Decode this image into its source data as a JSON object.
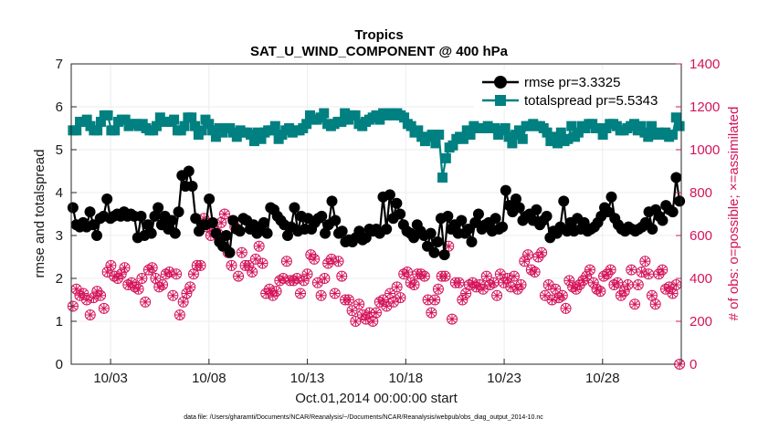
{
  "chart_data": {
    "type": "line",
    "title": "Tropics",
    "subtitle": "SAT_U_WIND_COMPONENT @ 400 hPa",
    "xlabel": "Oct.01,2014 00:00:00 start",
    "ylabel_left": "rmse and totalspread",
    "ylabel_right": "# of obs: o=possible; ×=assimilated",
    "footnote": "data file: /Users/gharamti/Documents/NCAR/Reanalysis/~/Documents/NCAR/Reanalysis/webpub/obs_diag_output_2014-10.nc",
    "x_unit": "days since Oct.01,2014 00:00:00",
    "xlim": [
      0.5,
      31.5
    ],
    "ylim_left": [
      0,
      7
    ],
    "ylim_right": [
      0,
      1400
    ],
    "x_ticks": [
      2.5,
      7.5,
      12.5,
      17.5,
      22.5,
      27.5
    ],
    "x_tick_labels": [
      "10/03",
      "10/08",
      "10/13",
      "10/18",
      "10/23",
      "10/28"
    ],
    "y_ticks_left": [
      0,
      1,
      2,
      3,
      4,
      5,
      6,
      7
    ],
    "y_ticks_right": [
      0,
      200,
      400,
      600,
      800,
      1000,
      1200,
      1400
    ],
    "grid": true,
    "legend_position": "top-right",
    "series": [
      {
        "name": "rmse pr=3.3325",
        "axis": "left",
        "color": "#000000",
        "marker": "circle",
        "values": [
          3.65,
          3.25,
          3.2,
          3.3,
          3.2,
          3.55,
          3.25,
          3.0,
          3.4,
          3.45,
          3.85,
          3.4,
          3.45,
          3.5,
          3.45,
          3.55,
          3.45,
          3.5,
          3.45,
          2.95,
          3.45,
          3.0,
          3.25,
          3.05,
          3.45,
          3.65,
          3.25,
          3.45,
          3.15,
          3.35,
          3.05,
          3.55,
          4.4,
          4.15,
          4.5,
          4.15,
          3.4,
          3.1,
          3.25,
          3.25,
          3.85,
          3.3,
          3.05,
          2.85,
          2.75,
          3.0,
          2.6,
          3.35,
          3.15,
          3.1,
          3.4,
          3.35,
          3.15,
          3.25,
          3.05,
          3.2,
          3.3,
          3.05,
          3.65,
          3.6,
          3.45,
          3.35,
          3.25,
          3.0,
          3.2,
          3.65,
          3.1,
          3.45,
          3.15,
          3.4,
          3.15,
          3.3,
          3.4,
          3.45,
          3.05,
          3.25,
          3.8,
          3.35,
          3.05,
          3.1,
          2.85,
          2.9,
          2.85,
          2.95,
          3.1,
          2.9,
          2.95,
          3.15,
          3.1,
          3.15,
          3.05,
          3.9,
          3.15,
          3.95,
          3.4,
          3.75,
          3.5,
          3.25,
          3.1,
          3.05,
          2.95,
          3.25,
          3.1,
          3.0,
          2.75,
          3.05,
          2.6,
          2.85,
          3.4,
          2.55,
          3.45,
          3.15,
          3.25,
          3.05,
          3.35,
          3.05,
          3.15,
          2.85,
          3.3,
          3.5,
          3.15,
          3.25,
          3.3,
          3.1,
          3.4,
          3.15,
          3.2,
          4.05,
          3.7,
          3.55,
          3.85,
          3.65,
          3.35,
          3.45,
          3.5,
          3.35,
          3.6,
          3.25,
          3.35,
          3.45,
          2.95,
          3.1,
          3.05,
          3.2,
          3.8,
          3.1,
          3.3,
          3.1,
          3.4,
          3.15,
          3.3,
          3.1,
          3.15,
          3.2,
          3.3,
          3.45,
          3.65,
          3.55,
          3.9,
          3.4,
          3.25,
          3.15,
          3.1,
          3.2,
          3.15,
          3.1,
          3.15,
          3.2,
          3.3,
          3.55,
          3.15,
          3.6,
          3.45,
          3.35,
          3.7,
          3.6,
          3.55,
          4.35,
          3.8
        ]
      },
      {
        "name": "totalspread pr=5.5343",
        "axis": "left",
        "color": "#008080",
        "marker": "square",
        "values": [
          5.45,
          5.45,
          5.65,
          5.65,
          5.7,
          5.55,
          5.45,
          5.45,
          5.65,
          5.8,
          5.8,
          5.45,
          5.45,
          5.65,
          5.7,
          5.7,
          5.55,
          5.6,
          5.6,
          5.55,
          5.6,
          5.5,
          5.45,
          5.45,
          5.55,
          5.75,
          5.65,
          5.65,
          5.65,
          5.7,
          5.45,
          5.45,
          5.55,
          5.75,
          5.75,
          5.55,
          5.35,
          5.45,
          5.7,
          5.6,
          5.45,
          5.3,
          5.5,
          5.4,
          5.5,
          5.5,
          5.4,
          5.3,
          5.45,
          5.4,
          5.4,
          5.35,
          5.2,
          5.4,
          5.25,
          5.4,
          5.45,
          5.45,
          5.55,
          5.25,
          5.35,
          5.45,
          5.5,
          5.4,
          5.45,
          5.45,
          5.5,
          5.6,
          5.8,
          5.7,
          5.7,
          5.75,
          5.85,
          5.6,
          5.55,
          5.6,
          5.65,
          5.65,
          5.85,
          5.7,
          5.8,
          5.8,
          5.6,
          5.55,
          5.65,
          5.7,
          5.75,
          5.8,
          5.7,
          5.85,
          5.8,
          5.85,
          5.8,
          5.85,
          5.8,
          5.75,
          5.6,
          5.55,
          5.4,
          5.45,
          5.3,
          5.2,
          5.3,
          5.35,
          5.15,
          5.35,
          4.35,
          4.8,
          5.05,
          5.1,
          5.25,
          5.3,
          5.25,
          5.45,
          5.35,
          5.55,
          5.5,
          5.5,
          5.5,
          5.55,
          5.5,
          5.5,
          5.35,
          5.45,
          5.5,
          5.3,
          5.15,
          5.35,
          5.45,
          5.25,
          5.55,
          5.55,
          5.6,
          5.55,
          5.55,
          5.5,
          5.4,
          5.2,
          5.3,
          5.15,
          5.4,
          5.2,
          5.25,
          5.55,
          5.3,
          5.4,
          5.55,
          5.5,
          5.6,
          5.6,
          5.5,
          5.5,
          5.35,
          5.5,
          5.6,
          5.6,
          5.55,
          5.45,
          5.45,
          5.5,
          5.55,
          5.6,
          5.45,
          5.55,
          5.4,
          5.3,
          5.55,
          5.35,
          5.4,
          5.35,
          5.4,
          5.3,
          5.35,
          5.75,
          5.55
        ]
      },
      {
        "name": "possible",
        "axis": "right",
        "color": "#d4145a",
        "marker": "open-circle",
        "values": [
          270,
          350,
          320,
          330,
          300,
          230,
          310,
          340,
          320,
          260,
          430,
          460,
          410,
          400,
          420,
          450,
          370,
          380,
          360,
          350,
          400,
          290,
          440,
          450,
          400,
          360,
          370,
          420,
          430,
          320,
          420,
          230,
          290,
          330,
          360,
          420,
          460,
          460,
          680,
          640,
          600,
          620,
          610,
          660,
          700,
          520,
          460,
          640,
          410,
          520,
          460,
          460,
          430,
          490,
          550,
          470,
          330,
          350,
          320,
          340,
          390,
          400,
          480,
          390,
          390,
          400,
          330,
          390,
          420,
          510,
          490,
          380,
          320,
          400,
          470,
          490,
          330,
          480,
          410,
          300,
          300,
          250,
          200,
          280,
          230,
          210,
          240,
          200,
          240,
          290,
          300,
          270,
          330,
          290,
          360,
          310,
          420,
          430,
          380,
          370,
          420,
          420,
          410,
          300,
          240,
          300,
          350,
          410,
          410,
          550,
          210,
          380,
          380,
          300,
          330,
          370,
          380,
          360,
          370,
          350,
          410,
          370,
          380,
          320,
          420,
          380,
          400,
          360,
          410,
          350,
          370,
          480,
          510,
          440,
          430,
          500,
          520,
          320,
          370,
          300,
          350,
          310,
          320,
          260,
          390,
          360,
          350,
          370,
          390,
          410,
          440,
          380,
          350,
          340,
          410,
          420,
          440,
          370,
          380,
          320,
          340,
          370,
          440,
          280,
          370,
          430,
          480,
          420,
          320,
          280,
          420,
          440,
          350,
          360,
          330,
          370,
          0
        ]
      },
      {
        "name": "assimilated",
        "axis": "right",
        "color": "#d4145a",
        "marker": "x",
        "values": [
          270,
          350,
          320,
          330,
          300,
          230,
          310,
          340,
          320,
          260,
          430,
          460,
          410,
          400,
          420,
          450,
          370,
          380,
          360,
          350,
          400,
          290,
          440,
          450,
          400,
          360,
          370,
          420,
          430,
          320,
          420,
          230,
          290,
          330,
          360,
          420,
          460,
          460,
          680,
          640,
          600,
          620,
          610,
          660,
          700,
          520,
          460,
          640,
          410,
          520,
          460,
          460,
          430,
          490,
          550,
          470,
          330,
          350,
          320,
          340,
          390,
          400,
          480,
          390,
          390,
          400,
          330,
          390,
          420,
          510,
          490,
          380,
          320,
          400,
          470,
          490,
          330,
          480,
          410,
          300,
          300,
          250,
          200,
          280,
          230,
          210,
          240,
          200,
          240,
          290,
          300,
          270,
          330,
          290,
          360,
          310,
          420,
          430,
          380,
          370,
          420,
          420,
          410,
          300,
          240,
          300,
          350,
          410,
          410,
          550,
          210,
          380,
          380,
          300,
          330,
          370,
          380,
          360,
          370,
          350,
          410,
          370,
          380,
          320,
          420,
          380,
          400,
          360,
          410,
          350,
          370,
          480,
          510,
          440,
          430,
          500,
          520,
          320,
          370,
          300,
          350,
          310,
          320,
          260,
          390,
          360,
          350,
          370,
          390,
          410,
          440,
          380,
          350,
          340,
          410,
          420,
          440,
          370,
          380,
          320,
          340,
          370,
          440,
          280,
          370,
          430,
          480,
          420,
          320,
          280,
          420,
          440,
          350,
          360,
          330,
          370,
          0
        ]
      }
    ]
  }
}
